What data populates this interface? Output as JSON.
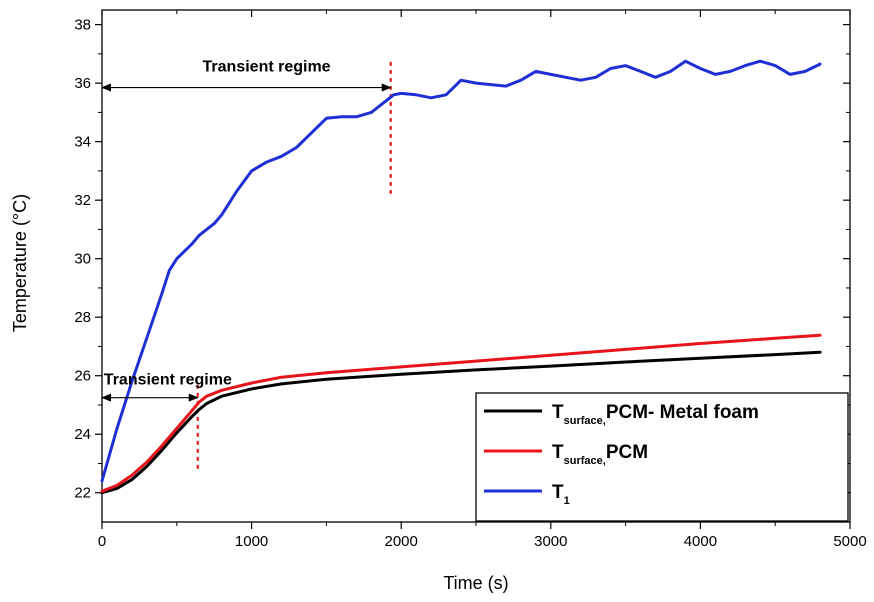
{
  "chart_data": {
    "type": "line",
    "xlabel": "Time (s)",
    "ylabel": "Temperature (°C)",
    "xlim": [
      0,
      5000
    ],
    "ylim": [
      21,
      38.5
    ],
    "xticks": [
      0,
      1000,
      2000,
      3000,
      4000,
      5000
    ],
    "yticks": [
      22,
      24,
      26,
      28,
      30,
      32,
      34,
      36,
      38
    ],
    "grid": false,
    "legend_position": "bottom-right",
    "series": [
      {
        "id": "pcm_metal_foam",
        "name_main": "T",
        "name_sub": "surface,",
        "name_rest": "PCM- Metal foam",
        "color": "#000000",
        "x": [
          0,
          100,
          200,
          300,
          400,
          500,
          600,
          650,
          700,
          800,
          1000,
          1200,
          1500,
          2000,
          2500,
          3000,
          3500,
          4000,
          4500,
          4800
        ],
        "y": [
          22.0,
          22.15,
          22.45,
          22.9,
          23.45,
          24.05,
          24.6,
          24.85,
          25.05,
          25.3,
          25.55,
          25.72,
          25.88,
          26.05,
          26.2,
          26.33,
          26.47,
          26.6,
          26.72,
          26.8
        ]
      },
      {
        "id": "pcm",
        "name_main": "T",
        "name_sub": "surface,",
        "name_rest": "PCM",
        "color": "#e8141c",
        "x": [
          0,
          100,
          200,
          300,
          400,
          500,
          600,
          650,
          700,
          800,
          1000,
          1200,
          1500,
          2000,
          2500,
          3000,
          3500,
          4000,
          4500,
          4800
        ],
        "y": [
          22.05,
          22.25,
          22.6,
          23.05,
          23.6,
          24.2,
          24.8,
          25.1,
          25.3,
          25.5,
          25.75,
          25.95,
          26.1,
          26.3,
          26.5,
          26.7,
          26.9,
          27.1,
          27.28,
          27.38
        ]
      },
      {
        "id": "t1",
        "name_main": "T",
        "name_sub": "1",
        "name_rest": "",
        "color": "#1f2fd6",
        "x": [
          0,
          100,
          200,
          300,
          400,
          450,
          500,
          600,
          650,
          700,
          750,
          800,
          900,
          1000,
          1100,
          1200,
          1300,
          1400,
          1500,
          1600,
          1700,
          1800,
          1900,
          1950,
          2000,
          2100,
          2200,
          2300,
          2400,
          2500,
          2600,
          2700,
          2800,
          2900,
          3000,
          3100,
          3200,
          3300,
          3400,
          3500,
          3600,
          3700,
          3800,
          3900,
          4000,
          4100,
          4200,
          4300,
          4400,
          4500,
          4600,
          4700,
          4800
        ],
        "y": [
          22.4,
          24.2,
          25.8,
          27.3,
          28.8,
          29.6,
          30.0,
          30.5,
          30.8,
          31.0,
          31.2,
          31.5,
          32.3,
          33.0,
          33.3,
          33.5,
          33.8,
          34.3,
          34.8,
          34.85,
          34.85,
          35.0,
          35.4,
          35.6,
          35.65,
          35.6,
          35.5,
          35.6,
          36.1,
          36.0,
          35.95,
          35.9,
          36.1,
          36.4,
          36.3,
          36.2,
          36.1,
          36.2,
          36.5,
          36.6,
          36.4,
          36.2,
          36.4,
          36.75,
          36.5,
          36.3,
          36.4,
          36.6,
          36.75,
          36.6,
          36.3,
          36.4,
          36.65
        ]
      }
    ],
    "annotations": [
      {
        "id": "transient-top",
        "text": "Transient regime",
        "arrow_x": [
          0,
          1930
        ],
        "arrow_y": 35.85,
        "label_x": 1100,
        "label_y": 36.4
      },
      {
        "id": "transient-bottom",
        "text": "Transient regime",
        "arrow_x": [
          0,
          640
        ],
        "arrow_y": 25.25,
        "label_x": 440,
        "label_y": 25.7
      }
    ],
    "markers": [
      {
        "id": "vline-top",
        "x": 1930,
        "y_range": [
          32.25,
          36.7
        ],
        "color": "#e8141c"
      },
      {
        "id": "vline-bottom",
        "x": 640,
        "y_range": [
          22.85,
          25.7
        ],
        "color": "#e8141c"
      }
    ]
  }
}
